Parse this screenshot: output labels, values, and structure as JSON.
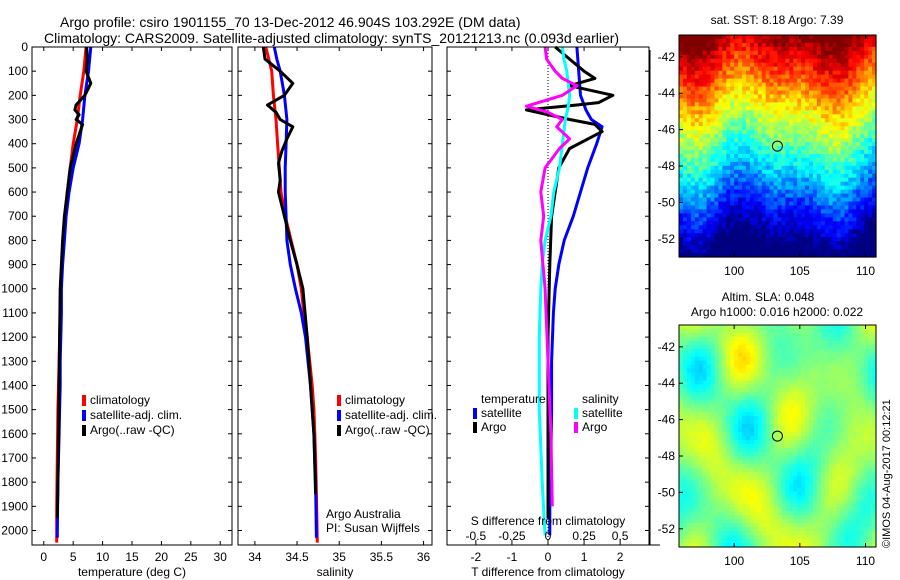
{
  "figure": {
    "title_line1": "Argo profile: csiro 1901155_70 13-Dec-2012 46.904S 103.292E (DM data)",
    "title_line2": "Climatology: CARS2009. Satellite-adjusted climatology: synTS_20121213.nc (0.093d earlier)",
    "footer_stamp": "©IMOS 04-Aug-2017 00:12:21",
    "colors": {
      "climatology": "#ff0000",
      "satellite": "#0000ff",
      "argo": "#000000",
      "sal_satellite": "#00ffff",
      "sal_argo": "#ff00ff"
    }
  },
  "chart_data": [
    {
      "id": "temperature",
      "type": "line",
      "xlabel": "temperature (deg C)",
      "ylabel": "",
      "xlim": [
        -2,
        32
      ],
      "ylim": [
        2060,
        0
      ],
      "xticks": [
        0,
        5,
        10,
        15,
        20,
        25,
        30
      ],
      "yticks": [
        0,
        100,
        200,
        300,
        400,
        500,
        600,
        700,
        800,
        900,
        1000,
        1100,
        1200,
        1300,
        1400,
        1500,
        1600,
        1700,
        1800,
        1900,
        2000
      ],
      "legend": [
        "climatology",
        "satellite-adj. clim.",
        "Argo(..raw -QC)"
      ],
      "legend_position": "center",
      "series": [
        {
          "name": "climatology",
          "color_key": "climatology",
          "x": [
            7.2,
            6.8,
            6.2,
            5.7,
            5.0,
            4.5,
            4.0,
            3.6,
            3.3,
            3.1,
            2.9,
            2.8,
            2.7,
            2.6,
            2.5,
            2.4,
            2.35,
            2.3,
            2.25,
            2.2,
            2.2
          ],
          "y": [
            0,
            100,
            200,
            300,
            400,
            500,
            600,
            700,
            800,
            900,
            1000,
            1100,
            1200,
            1300,
            1400,
            1500,
            1600,
            1700,
            1800,
            1900,
            2050
          ]
        },
        {
          "name": "satellite-adj. clim.",
          "color_key": "satellite",
          "x": [
            8.0,
            7.6,
            7.0,
            6.6,
            6.0,
            5.0,
            4.3,
            3.8,
            3.5,
            3.2,
            3.0,
            3.0,
            2.9,
            2.8,
            2.8,
            2.7,
            2.6,
            2.5,
            2.4,
            2.35,
            2.3
          ],
          "y": [
            0,
            100,
            200,
            300,
            400,
            500,
            600,
            700,
            800,
            900,
            1000,
            1100,
            1200,
            1300,
            1400,
            1500,
            1600,
            1700,
            1800,
            1900,
            2030
          ]
        },
        {
          "name": "Argo(..raw -QC)",
          "color_key": "argo",
          "x": [
            7.3,
            7.4,
            7.2,
            8.0,
            7.0,
            5.5,
            5.3,
            6.0,
            5.5,
            6.6,
            5.5,
            4.5,
            4.0,
            3.5,
            3.2,
            3.0,
            2.8,
            2.7,
            2.6,
            2.5,
            2.4,
            2.3
          ],
          "y": [
            0,
            50,
            100,
            150,
            200,
            240,
            260,
            280,
            300,
            320,
            400,
            500,
            600,
            700,
            800,
            900,
            1000,
            1200,
            1400,
            1600,
            1800,
            1950
          ]
        }
      ]
    },
    {
      "id": "salinity",
      "type": "line",
      "xlabel": "salinity",
      "ylabel": "",
      "xlim": [
        33.8,
        36.1
      ],
      "ylim": [
        2060,
        0
      ],
      "xticks": [
        34,
        34.5,
        35,
        35.5,
        36
      ],
      "xtick_labels": [
        "34",
        "34.5",
        "35",
        "35.5",
        "36"
      ],
      "legend": [
        "climatology",
        "satellite-adj. clim.",
        "Argo(..raw -QC)"
      ],
      "legend_position": "center-right",
      "annotation": [
        "Argo Australia",
        "PI: Susan Wijffels"
      ],
      "series": [
        {
          "name": "climatology",
          "color_key": "climatology",
          "x": [
            34.13,
            34.2,
            34.22,
            34.25,
            34.27,
            34.29,
            34.31,
            34.36,
            34.43,
            34.5,
            34.55,
            34.58,
            34.62,
            34.65,
            34.68,
            34.7,
            34.71,
            34.72,
            34.73,
            34.74
          ],
          "y": [
            0,
            100,
            200,
            300,
            400,
            500,
            600,
            700,
            800,
            900,
            1000,
            1100,
            1200,
            1300,
            1400,
            1500,
            1600,
            1700,
            1850,
            2050
          ]
        },
        {
          "name": "satellite-adj. clim.",
          "color_key": "satellite",
          "x": [
            34.23,
            34.26,
            34.3,
            34.35,
            34.38,
            34.37,
            34.36,
            34.36,
            34.37,
            34.38,
            34.42,
            34.48,
            34.55,
            34.6,
            34.63,
            34.66,
            34.68,
            34.7,
            34.72,
            34.73
          ],
          "y": [
            0,
            50,
            100,
            200,
            300,
            400,
            500,
            600,
            700,
            800,
            900,
            1000,
            1100,
            1200,
            1300,
            1400,
            1500,
            1600,
            1800,
            2030
          ]
        },
        {
          "name": "Argo(..raw -QC)",
          "color_key": "argo",
          "x": [
            34.1,
            34.12,
            34.3,
            34.45,
            34.35,
            34.15,
            34.25,
            34.3,
            34.45,
            34.38,
            34.32,
            34.28,
            34.3,
            34.28,
            34.35,
            34.42,
            34.5,
            34.57,
            34.62,
            34.66,
            34.7,
            34.72
          ],
          "y": [
            0,
            50,
            100,
            150,
            200,
            240,
            270,
            300,
            330,
            380,
            430,
            480,
            550,
            600,
            700,
            800,
            900,
            1000,
            1200,
            1400,
            1600,
            1850
          ]
        }
      ]
    },
    {
      "id": "difference",
      "type": "line",
      "xlabel": "T difference from climatology",
      "x2label": "S difference from climatology",
      "xlim": [
        -2.8,
        2.8
      ],
      "x2lim": [
        -0.7,
        0.7
      ],
      "ylim": [
        2060,
        0
      ],
      "xticks": [
        -2,
        -1,
        0,
        1,
        2
      ],
      "x2ticks": [
        -0.5,
        -0.25,
        0,
        0.25,
        0.5
      ],
      "x2tick_labels": [
        "-0.5",
        "-0.25",
        "0",
        "0.25",
        "0.5"
      ],
      "legend": {
        "temperature_header": "temperature",
        "salinity_header": "salinity",
        "entries": [
          "satellite",
          "Argo",
          "satellite",
          "Argo"
        ]
      },
      "legend_position": "lower-middle",
      "series": [
        {
          "name": "T satellite",
          "color_key": "satellite",
          "axis": "T",
          "x": [
            0.8,
            0.85,
            0.9,
            1.05,
            1.2,
            1.5,
            1.35,
            1.1,
            0.9,
            0.7,
            0.45,
            0.3,
            0.2,
            0.15,
            0.1,
            0.1,
            0.08,
            0.06,
            0.05,
            0.05
          ],
          "y": [
            0,
            100,
            200,
            260,
            300,
            330,
            400,
            500,
            600,
            700,
            800,
            900,
            1000,
            1100,
            1300,
            1500,
            1700,
            1800,
            1900,
            2020
          ]
        },
        {
          "name": "T Argo",
          "color_key": "argo",
          "axis": "T",
          "x": [
            0.2,
            0.6,
            1.0,
            1.3,
            0.6,
            1.8,
            1.4,
            0.8,
            -0.6,
            0.6,
            1.3,
            1.5,
            0.6,
            0.3,
            0.2,
            0.1,
            0.05,
            0.0,
            0.0,
            0.0
          ],
          "y": [
            0,
            50,
            100,
            130,
            160,
            200,
            230,
            240,
            260,
            300,
            320,
            350,
            420,
            500,
            600,
            700,
            900,
            1200,
            1600,
            1950
          ]
        },
        {
          "name": "S satellite",
          "color_key": "sal_satellite",
          "axis": "S",
          "x": [
            0.1,
            0.11,
            0.13,
            0.14,
            0.15,
            0.14,
            0.12,
            0.1,
            0.08,
            0.04,
            0.02,
            -0.02,
            -0.04,
            -0.05,
            -0.06,
            -0.06,
            -0.04,
            -0.02
          ],
          "y": [
            0,
            50,
            100,
            150,
            200,
            250,
            300,
            400,
            500,
            600,
            700,
            800,
            900,
            1000,
            1200,
            1500,
            1800,
            2020
          ]
        },
        {
          "name": "S Argo",
          "color_key": "sal_argo",
          "axis": "S",
          "x": [
            -0.02,
            -0.01,
            0.05,
            0.1,
            0.2,
            0.1,
            -0.15,
            0.0,
            0.1,
            0.06,
            0.15,
            0.08,
            -0.02,
            -0.05,
            -0.03,
            -0.05,
            -0.02,
            0.0,
            0.02,
            0.03
          ],
          "y": [
            0,
            50,
            100,
            130,
            160,
            200,
            245,
            270,
            300,
            330,
            380,
            420,
            500,
            600,
            700,
            800,
            1000,
            1300,
            1600,
            1900
          ]
        }
      ]
    },
    {
      "id": "sst_map",
      "type": "heatmap",
      "title": "sat. SST: 8.18 Argo: 7.39",
      "xlim": [
        95.8,
        110.8
      ],
      "ylim": [
        -53,
        -40.8
      ],
      "xticks": [
        100,
        105,
        110
      ],
      "yticks": [
        -42,
        -44,
        -46,
        -48,
        -50,
        -52
      ],
      "marker": {
        "lon": 103.292,
        "lat": -46.904
      },
      "colormap": "jet"
    },
    {
      "id": "sla_map",
      "type": "heatmap",
      "title_line1": "Altim. SLA: 0.048",
      "title_line2": "Argo h1000: 0.016 h2000: 0.022",
      "xlim": [
        95.8,
        110.8
      ],
      "ylim": [
        -53,
        -40.8
      ],
      "xticks": [
        100,
        105,
        110
      ],
      "yticks": [
        -42,
        -44,
        -46,
        -48,
        -50,
        -52
      ],
      "marker": {
        "lon": 103.292,
        "lat": -46.904
      },
      "colormap": "jet"
    }
  ]
}
